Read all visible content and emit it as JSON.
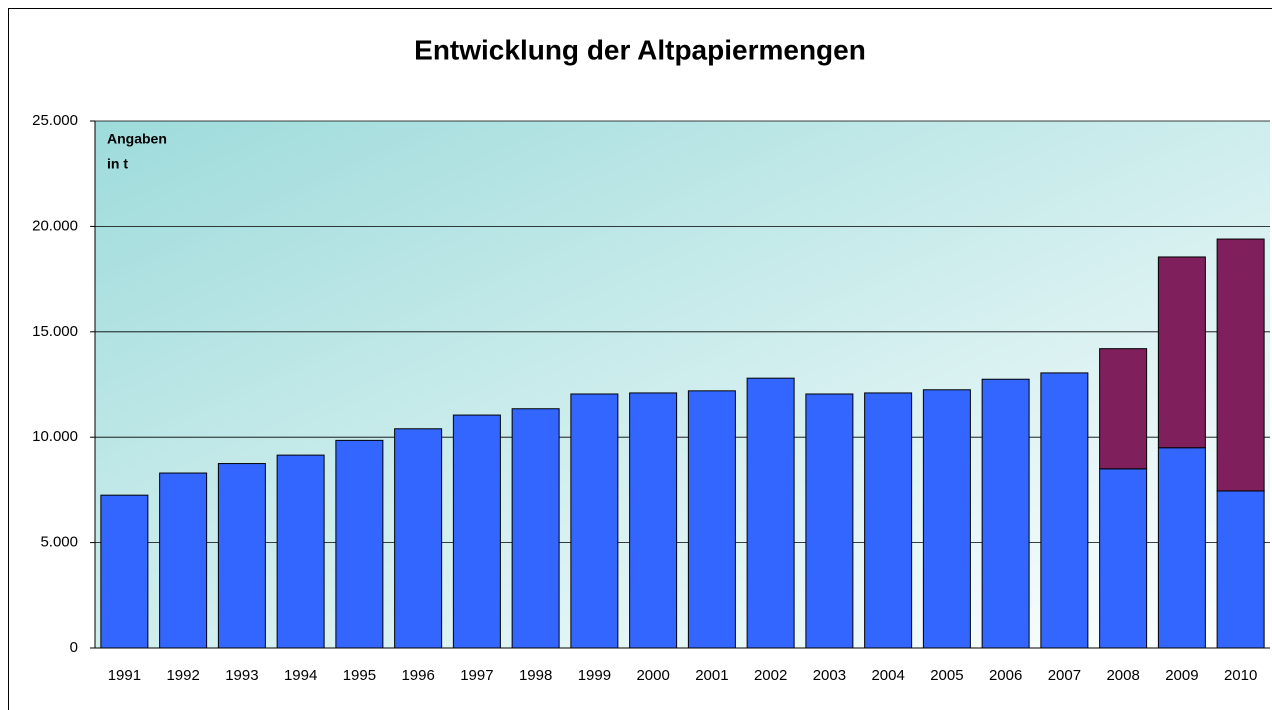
{
  "chart_data": {
    "type": "stacked_bar",
    "title": "Entwicklung der Altpapiermengen",
    "annotation": [
      "Angaben",
      "in t"
    ],
    "categories": [
      "1991",
      "1992",
      "1993",
      "1994",
      "1995",
      "1996",
      "1997",
      "1998",
      "1999",
      "2000",
      "2001",
      "2002",
      "2003",
      "2004",
      "2005",
      "2006",
      "2007",
      "2008",
      "2009",
      "2010"
    ],
    "series": [
      {
        "color": "#3366ff",
        "values": [
          7250,
          8300,
          8750,
          9150,
          9850,
          10400,
          11050,
          11350,
          12050,
          12100,
          12200,
          12800,
          12050,
          12100,
          12250,
          12750,
          13050,
          8500,
          9500,
          7450
        ]
      },
      {
        "color": "#7f1f5b",
        "values": [
          null,
          null,
          null,
          null,
          null,
          null,
          null,
          null,
          null,
          null,
          null,
          null,
          null,
          null,
          null,
          null,
          null,
          5700,
          9050,
          11950
        ]
      }
    ],
    "ylim": [
      0,
      25000
    ],
    "yticks": [
      0,
      {
        "value": 5000,
        "label": "5.000"
      },
      {
        "value": 10000,
        "label": "10.000"
      },
      {
        "value": 15000,
        "label": "15.000"
      },
      {
        "value": 20000,
        "label": "20.000"
      },
      {
        "value": 25000,
        "label": "25.000"
      }
    ],
    "grid": true
  }
}
